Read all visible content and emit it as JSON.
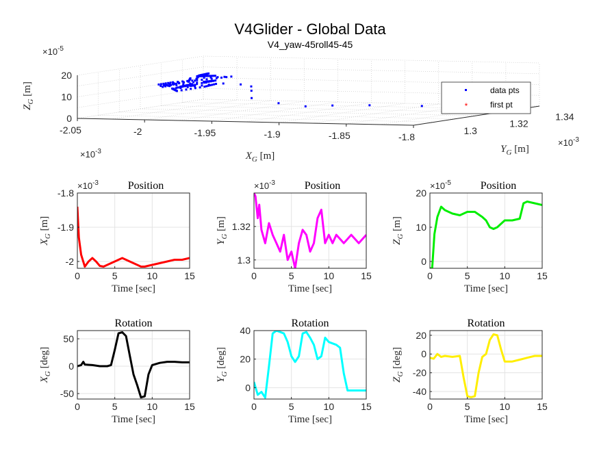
{
  "figure": {
    "title": "V4Glider - Global Data",
    "subtitle": "V4_yaw-45roll45-45"
  },
  "chart_data": [
    {
      "id": "trajectory3d",
      "type": "scatter",
      "title": "V4Glider - Global Data",
      "subtitle": "V4_yaw-45roll45-45",
      "xlabel": "X_G [m]",
      "ylabel": "Y_G [m]",
      "zlabel": "Z_G [m]",
      "x_exponent": "×10^-3",
      "y_exponent": "×10^-3",
      "z_exponent": "×10^-5",
      "x_ticks": [
        "-2.05",
        "-2",
        "-1.95",
        "-1.9",
        "-1.85",
        "-1.8"
      ],
      "y_ticks": [
        "1.3",
        "1.32",
        "1.34"
      ],
      "z_ticks": [
        "0",
        "10",
        "20"
      ],
      "xlim": [
        -2.05,
        -1.8
      ],
      "ylim": [
        1.29,
        1.345
      ],
      "zlim": [
        0,
        20
      ],
      "grid": true,
      "legend_position": "right",
      "series": [
        {
          "name": "data pts",
          "color": "#0000ff",
          "marker": "dot"
        },
        {
          "name": "first pt",
          "color": "#ff0000",
          "marker": "asterisk"
        }
      ]
    },
    {
      "id": "pos-x",
      "type": "line",
      "title": "Position",
      "exponent": "×10^-3",
      "xlabel": "Time [sec]",
      "ylabel": "X_G [m]",
      "color": "#ff0000",
      "xlim": [
        0,
        15
      ],
      "ylim": [
        -2.02,
        -1.8
      ],
      "x_ticks": [
        0,
        5,
        10,
        15
      ],
      "y_ticks": [
        -1.8,
        -1.9,
        -2
      ],
      "x": [
        0,
        0.2,
        0.5,
        1.0,
        1.5,
        2.0,
        2.5,
        3.0,
        3.5,
        4.0,
        5.0,
        6.0,
        7.0,
        8.0,
        8.5,
        9.0,
        10.0,
        11.0,
        12.0,
        13.0,
        14.0,
        15.0
      ],
      "y": [
        -1.84,
        -1.93,
        -1.98,
        -2.015,
        -2.0,
        -1.99,
        -2.0,
        -2.013,
        -2.015,
        -2.01,
        -2.0,
        -1.99,
        -2.0,
        -2.01,
        -2.015,
        -2.015,
        -2.01,
        -2.005,
        -2.0,
        -1.995,
        -1.995,
        -1.99
      ]
    },
    {
      "id": "pos-y",
      "type": "line",
      "title": "Position",
      "exponent": "×10^-3",
      "xlabel": "Time [sec]",
      "ylabel": "Y_G [m]",
      "color": "#ff00ff",
      "xlim": [
        0,
        15
      ],
      "ylim": [
        1.295,
        1.34
      ],
      "x_ticks": [
        0,
        5,
        10,
        15
      ],
      "y_ticks": [
        1.32,
        1.3
      ],
      "x": [
        0,
        0.2,
        0.5,
        0.7,
        1.0,
        1.5,
        2.0,
        2.5,
        3.0,
        3.5,
        4.0,
        4.5,
        5.0,
        5.5,
        6.0,
        6.5,
        7.0,
        7.5,
        8.0,
        8.5,
        9.0,
        9.5,
        10.0,
        10.5,
        11.0,
        12.0,
        13.0,
        14.0,
        15.0
      ],
      "y": [
        1.34,
        1.338,
        1.325,
        1.333,
        1.318,
        1.31,
        1.322,
        1.315,
        1.31,
        1.305,
        1.315,
        1.3,
        1.305,
        1.295,
        1.31,
        1.318,
        1.315,
        1.305,
        1.31,
        1.325,
        1.33,
        1.31,
        1.315,
        1.31,
        1.315,
        1.31,
        1.315,
        1.31,
        1.315
      ]
    },
    {
      "id": "pos-z",
      "type": "line",
      "title": "Position",
      "exponent": "×10^-5",
      "xlabel": "Time [sec]",
      "ylabel": "Z_G [m]",
      "color": "#00ee00",
      "xlim": [
        0,
        15
      ],
      "ylim": [
        -2,
        20
      ],
      "x_ticks": [
        0,
        5,
        10,
        15
      ],
      "y_ticks": [
        20,
        10,
        0
      ],
      "x": [
        0,
        0.3,
        0.6,
        1.0,
        1.5,
        2.0,
        3.0,
        4.0,
        5.0,
        6.0,
        7.0,
        7.5,
        8.0,
        8.5,
        9.0,
        10.0,
        11.0,
        12.0,
        12.5,
        13.0,
        14.0,
        15.0
      ],
      "y": [
        -2,
        -2,
        8,
        13,
        16,
        15,
        14,
        13.5,
        14.5,
        14.5,
        13,
        12,
        10,
        9.5,
        10,
        12,
        12,
        12.5,
        17,
        17.5,
        17,
        16.5
      ]
    },
    {
      "id": "rot-x",
      "type": "line",
      "title": "Rotation",
      "xlabel": "Time [sec]",
      "ylabel": "X_G [deg]",
      "color": "#000000",
      "xlim": [
        0,
        15
      ],
      "ylim": [
        -60,
        65
      ],
      "x_ticks": [
        0,
        5,
        10,
        15
      ],
      "y_ticks": [
        50,
        0,
        -50
      ],
      "x": [
        0,
        0.5,
        0.8,
        1.0,
        2.0,
        3.0,
        4.0,
        4.5,
        5.0,
        5.5,
        6.0,
        6.5,
        7.0,
        7.5,
        8.0,
        8.5,
        9.0,
        9.5,
        10.0,
        11.0,
        12.0,
        13.0,
        14.0,
        15.0
      ],
      "y": [
        0,
        2,
        8,
        3,
        2,
        0,
        0,
        2,
        30,
        60,
        62,
        55,
        20,
        -15,
        -35,
        -57,
        -55,
        -15,
        2,
        6,
        8,
        8,
        7,
        7
      ]
    },
    {
      "id": "rot-y",
      "type": "line",
      "title": "Rotation",
      "xlabel": "Time [sec]",
      "ylabel": "Y_G [deg]",
      "color": "#00ffff",
      "xlim": [
        0,
        15
      ],
      "ylim": [
        -8,
        40
      ],
      "x_ticks": [
        0,
        5,
        10,
        15
      ],
      "y_ticks": [
        40,
        20,
        0
      ],
      "x": [
        0,
        0.5,
        1.0,
        1.5,
        2.0,
        2.5,
        3.0,
        4.0,
        4.5,
        5.0,
        5.5,
        6.0,
        6.5,
        7.0,
        7.5,
        8.0,
        8.5,
        9.0,
        9.5,
        10.0,
        11.0,
        11.5,
        12.0,
        12.5,
        13.0,
        14.0,
        15.0
      ],
      "y": [
        4,
        -5,
        -3,
        -7,
        15,
        38,
        40,
        38,
        32,
        22,
        18,
        22,
        38,
        39,
        35,
        30,
        20,
        22,
        35,
        32,
        30,
        28,
        10,
        -2,
        -2,
        -2,
        -2
      ]
    },
    {
      "id": "rot-z",
      "type": "line",
      "title": "Rotation",
      "xlabel": "Time [sec]",
      "ylabel": "Z_G [deg]",
      "color": "#ffee00",
      "xlim": [
        0,
        15
      ],
      "ylim": [
        -48,
        25
      ],
      "x_ticks": [
        0,
        5,
        10,
        15
      ],
      "y_ticks": [
        20,
        0,
        -20,
        -40
      ],
      "x": [
        0,
        0.5,
        1.0,
        1.5,
        2.0,
        3.0,
        4.0,
        4.5,
        5.0,
        5.5,
        6.0,
        6.5,
        7.0,
        7.5,
        8.0,
        8.5,
        9.0,
        9.5,
        10.0,
        11.0,
        12.0,
        13.0,
        14.0,
        15.0
      ],
      "y": [
        -4,
        -5,
        0,
        -3,
        -2,
        -3,
        -2,
        -25,
        -45,
        -46,
        -45,
        -20,
        -3,
        0,
        15,
        21,
        20,
        5,
        -8,
        -8,
        -6,
        -4,
        -2,
        -2
      ]
    }
  ]
}
